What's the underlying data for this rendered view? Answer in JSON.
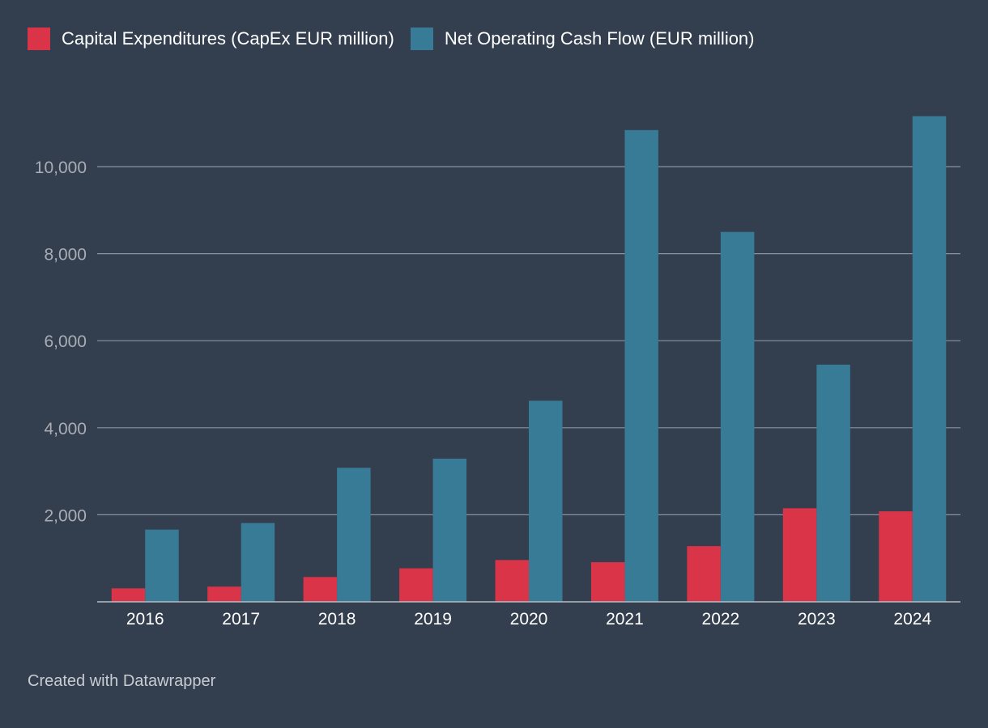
{
  "chart_data": {
    "type": "bar",
    "categories": [
      "2016",
      "2017",
      "2018",
      "2019",
      "2020",
      "2021",
      "2022",
      "2023",
      "2024"
    ],
    "series": [
      {
        "name": "Capital Expenditures (CapEx EUR million)",
        "color": "#d93447",
        "values": [
          310,
          350,
          570,
          770,
          960,
          910,
          1280,
          2150,
          2080
        ]
      },
      {
        "name": "Net Operating Cash Flow (EUR million)",
        "color": "#377b96",
        "values": [
          1660,
          1810,
          3080,
          3290,
          4620,
          10840,
          8500,
          5450,
          11160
        ]
      }
    ],
    "yticks": [
      2000,
      4000,
      6000,
      8000,
      10000
    ],
    "ytick_labels": [
      "2,000",
      "4,000",
      "6,000",
      "8,000",
      "10,000"
    ],
    "ylim": [
      0,
      11500
    ],
    "legend_position": "top-left",
    "grid": true
  },
  "footer": "Created with Datawrapper"
}
